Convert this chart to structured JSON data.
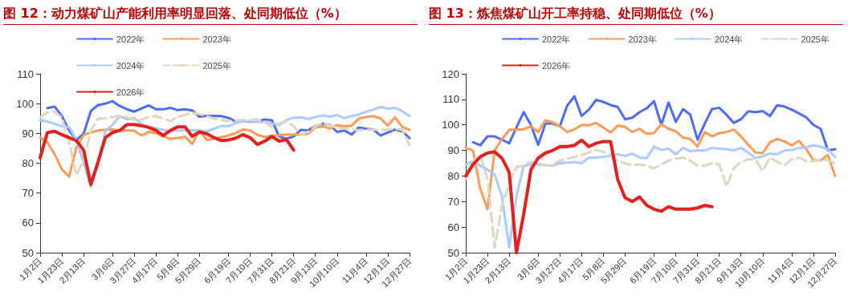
{
  "chart_data": [
    {
      "type": "line",
      "title": "图 12：动力煤矿山产能利用率明显回落、处同期低位（%）",
      "categories": [
        "1月2日",
        null,
        null,
        "1月23日",
        null,
        null,
        "2月13日",
        null,
        null,
        null,
        "3月6日",
        null,
        null,
        "3月27日",
        null,
        null,
        "4月17日",
        null,
        null,
        "5月8日",
        null,
        null,
        "5月29日",
        null,
        null,
        null,
        "6月19日",
        null,
        null,
        "7月10日",
        null,
        null,
        "7月31日",
        null,
        null,
        "8月21日",
        null,
        null,
        "9月13日",
        null,
        null,
        "10月10日",
        null,
        null,
        null,
        "11月4日",
        null,
        null,
        "12月1日",
        null,
        null,
        "12月27日"
      ],
      "series": [
        {
          "name": "2022年",
          "color": "#4a6cf7",
          "values": [
            null,
            98.5,
            99,
            95.8,
            91,
            87.8,
            89.9,
            97.5,
            99.5,
            100,
            100.8,
            99.2,
            98.1,
            97.3,
            98.4,
            99.4,
            98.1,
            98.1,
            98.6,
            97.8,
            98.1,
            97.7,
            95.6,
            95.9,
            95.9,
            95.8,
            95.2,
            94,
            94.1,
            93.9,
            94,
            94.7,
            94.4,
            89,
            88.2,
            89,
            91.2,
            91,
            92.4,
            93.3,
            92.8,
            90.5,
            91,
            89.6,
            92,
            91.6,
            91.3,
            89.3,
            90.3,
            91.3,
            90.7,
            88.4
          ]
        },
        {
          "name": "2023年",
          "color": "#ff9a55",
          "values": [
            88.6,
            87,
            83,
            78,
            75.5,
            85.2,
            89.5,
            90.3,
            91,
            91.2,
            91.3,
            91,
            91,
            90.9,
            89.3,
            90.5,
            90.1,
            89,
            88.2,
            88.5,
            88.9,
            86.5,
            91,
            87.8,
            88.3,
            88.7,
            89.3,
            90.1,
            91.3,
            91,
            89.5,
            88.8,
            89.2,
            89.4,
            89.6,
            89.6,
            89.6,
            89.9,
            92,
            92.4,
            91.6,
            92.8,
            92.4,
            92.6,
            95,
            95.5,
            95.8,
            95,
            92.6,
            95.4,
            92.2,
            91.2
          ]
        },
        {
          "name": "2024年",
          "color": "#a9cbff",
          "values": [
            94.4,
            94,
            93.2,
            92.4,
            92.2,
            87.8,
            80.1,
            72,
            79.3,
            90.7,
            92.9,
            95.8,
            94.7,
            95.2,
            93,
            92.2,
            91.7,
            91.2,
            90.8,
            90.9,
            91,
            91,
            91,
            90.7,
            91.6,
            92.5,
            92.4,
            93.5,
            93.9,
            94.1,
            93.9,
            93.8,
            93.4,
            92.8,
            94.5,
            95.3,
            95.4,
            94.8,
            95.5,
            96,
            95.6,
            96.2,
            95.1,
            95.9,
            96.3,
            97.3,
            98,
            98.9,
            98.3,
            98.6,
            97.5,
            95.8
          ]
        },
        {
          "name": "2025年",
          "color": "#e0d6c0",
          "line_style": "dashed",
          "values": [
            95.4,
            97.1,
            97.3,
            95.4,
            87,
            76,
            81,
            91,
            95,
            95.1,
            95.5,
            96,
            95.4,
            94.5,
            94.6,
            95.5,
            95.8,
            95,
            94.1,
            95.5,
            96.2,
            96.9,
            96.5,
            95.8,
            95,
            94.5,
            94.1,
            94.3,
            94.5,
            94.5,
            94.7,
            93.7,
            92.2,
            93.4,
            93.9,
            92.5,
            89.5,
            90.5,
            92.3,
            93.6,
            92.6,
            92,
            91.6,
            91.2,
            91.1,
            91.2,
            91.2,
            91.2,
            91.2,
            91.6,
            91.2,
            86.1
          ]
        },
        {
          "name": "2026年",
          "color": "#e3201b",
          "values": [
            81.8,
            90.3,
            90.7,
            89.6,
            88.6,
            87.6,
            84.4,
            72.9,
            80.5,
            88.6,
            90.3,
            91,
            93,
            93,
            92.6,
            92,
            91,
            89.3,
            91,
            92.2,
            92.2,
            89,
            90.5,
            89.9,
            88.6,
            87.6,
            87.8,
            88.4,
            89.6,
            88.6,
            86.3,
            87.4,
            89,
            87.4,
            88,
            84.4,
            null,
            null,
            null,
            null,
            null,
            null,
            null,
            null,
            null,
            null,
            null,
            null,
            null,
            null,
            null,
            null
          ]
        }
      ],
      "ylim": [
        50,
        110
      ],
      "yticks": [
        50,
        60,
        70,
        80,
        90,
        100,
        110
      ],
      "legend": "top left",
      "grid": false,
      "marker": "none"
    },
    {
      "type": "line",
      "title": "图 13：炼焦煤矿山开工率持稳、处同期低位（%）",
      "categories": [
        "1月2日",
        null,
        null,
        "1月23日",
        null,
        null,
        "2月13日",
        null,
        null,
        null,
        "3月6日",
        null,
        null,
        "3月27日",
        null,
        null,
        "4月17日",
        null,
        null,
        "5月8日",
        null,
        null,
        "5月29日",
        null,
        null,
        null,
        "6月19日",
        null,
        null,
        "7月10日",
        null,
        null,
        "7月31日",
        null,
        null,
        "8月21日",
        null,
        null,
        "9月13日",
        null,
        null,
        "10月10日",
        null,
        null,
        null,
        "11月4日",
        null,
        null,
        "12月1日",
        null,
        null,
        "12月27日"
      ],
      "series": [
        {
          "name": "2022年",
          "color": "#4a6cf7",
          "values": [
            null,
            93.2,
            92,
            95.5,
            95.5,
            94.2,
            92.8,
            99,
            105,
            100,
            92.2,
            100.5,
            100.5,
            99.5,
            107.5,
            111.2,
            103.5,
            106,
            109.8,
            109,
            107.8,
            107,
            102.2,
            102.8,
            105,
            106.5,
            109.3,
            100,
            108.8,
            101.2,
            106.2,
            104,
            94.2,
            100.5,
            106.2,
            106.7,
            104,
            100.8,
            102.2,
            105.3,
            105,
            105.4,
            103.5,
            107.7,
            107.2,
            106,
            104.5,
            103,
            100,
            98.5,
            90,
            90.5
          ]
        },
        {
          "name": "2023年",
          "color": "#ff9a55",
          "values": [
            91,
            90,
            75,
            67,
            90,
            94.5,
            98,
            98.2,
            98.2,
            99.5,
            97.2,
            101.8,
            101,
            99.5,
            97.2,
            98.2,
            100,
            99.8,
            100.8,
            99,
            97,
            99.7,
            99.2,
            97.2,
            98.5,
            96.5,
            96.8,
            100.3,
            98.5,
            97.5,
            95,
            94.5,
            91.5,
            97.2,
            95.5,
            96.8,
            97.2,
            98.2,
            95.5,
            92.2,
            89.2,
            89,
            93.2,
            94.5,
            93.5,
            92,
            93.8,
            90.5,
            86.2,
            86.2,
            88.2,
            80
          ]
        },
        {
          "name": "2024年",
          "color": "#a9cbff",
          "values": [
            84.5,
            86,
            84,
            82.5,
            80.5,
            72,
            52,
            72,
            84,
            84.5,
            84.6,
            84.2,
            84,
            85,
            85.2,
            85.5,
            85,
            87.2,
            87.2,
            87.5,
            88,
            88.5,
            87.8,
            88.8,
            87.2,
            87,
            91.5,
            90.2,
            90.7,
            88.5,
            91,
            89.7,
            90,
            90,
            91,
            90.7,
            90.5,
            90,
            91,
            89.2,
            87,
            87.8,
            88.8,
            88.5,
            90,
            90.2,
            91,
            91.2,
            92,
            91.5,
            90.5,
            87.5
          ]
        },
        {
          "name": "2025年",
          "color": "#e0d6c0",
          "line_style": "dashed",
          "values": [
            79,
            86,
            88,
            79,
            52,
            68.5,
            77,
            83.5,
            84,
            85.5,
            85.2,
            84.2,
            84.2,
            86,
            86.7,
            87.5,
            88.2,
            89.2,
            90.2,
            89.5,
            87.5,
            86,
            85,
            84.2,
            84.5,
            84,
            83,
            84.5,
            86,
            86.8,
            87.2,
            86,
            84,
            84,
            85,
            84.5,
            76,
            83,
            85.5,
            86.5,
            86.5,
            82,
            87.2,
            85.5,
            84.2,
            86.5,
            87.2,
            85.8,
            85.8,
            86.5,
            86.2,
            85
          ]
        },
        {
          "name": "2026年",
          "color": "#e3201b",
          "values": [
            80,
            84.5,
            87.5,
            89,
            89.5,
            87,
            81.5,
            50,
            65,
            82.5,
            87,
            89,
            90,
            91.5,
            91.5,
            92,
            94,
            91.5,
            92.8,
            93.5,
            93.5,
            78.5,
            71.5,
            70,
            71.8,
            68.5,
            67,
            66.2,
            68,
            67,
            67,
            67,
            67.5,
            68.5,
            68,
            null,
            null,
            null,
            null,
            null,
            null,
            null,
            null,
            null,
            null,
            null,
            null,
            null,
            null,
            null,
            null,
            null
          ]
        }
      ],
      "ylim": [
        50,
        120
      ],
      "yticks": [
        50,
        60,
        70,
        80,
        90,
        100,
        110,
        120
      ],
      "legend": "top",
      "grid": false,
      "marker": "none"
    }
  ]
}
